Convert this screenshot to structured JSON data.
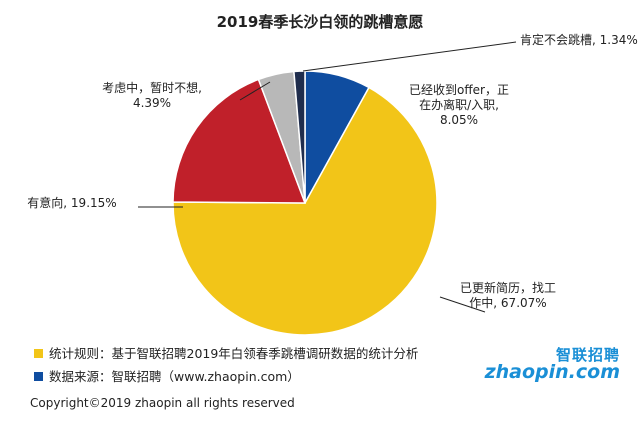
{
  "chart_data": {
    "type": "pie",
    "title": "2019春季长沙白领的跳槽意愿",
    "slices": [
      {
        "label": "已更新简历，找工作中",
        "value": 67.07,
        "color": "#f2c518",
        "text_lines": [
          "已更新简历，找工",
          "作中, 67.07%"
        ]
      },
      {
        "label": "有意向",
        "value": 19.15,
        "color": "#c0202a",
        "text_lines": [
          "有意向, 19.15%"
        ]
      },
      {
        "label": "考虑中，暂时不想",
        "value": 4.39,
        "color": "#b8b8b8",
        "text_lines": [
          "考虑中，暂时不想,",
          "4.39%"
        ]
      },
      {
        "label": "肯定不会跳槽",
        "value": 1.34,
        "color": "#1f2d4d",
        "text_lines": [
          "肯定不会跳槽, 1.34%"
        ]
      },
      {
        "label": "已经收到offer，正在办离职/入职",
        "value": 8.05,
        "color": "#0f4da0",
        "text_lines": [
          "已经收到offer，正",
          "在办离职/入职,",
          "8.05%"
        ]
      }
    ]
  },
  "notes": [
    {
      "text": "统计规则：基于智联招聘2019年白领春季跳槽调研数据的统计分析",
      "color": "#f2c518"
    },
    {
      "text": "数据来源：智联招聘（www.zhaopin.com）",
      "color": "#0f4da0"
    }
  ],
  "logo": {
    "top": "智联招聘",
    "bottom": "zhaopin.com"
  },
  "copyright": "Copyright©2019 zhaopin all rights reserved"
}
